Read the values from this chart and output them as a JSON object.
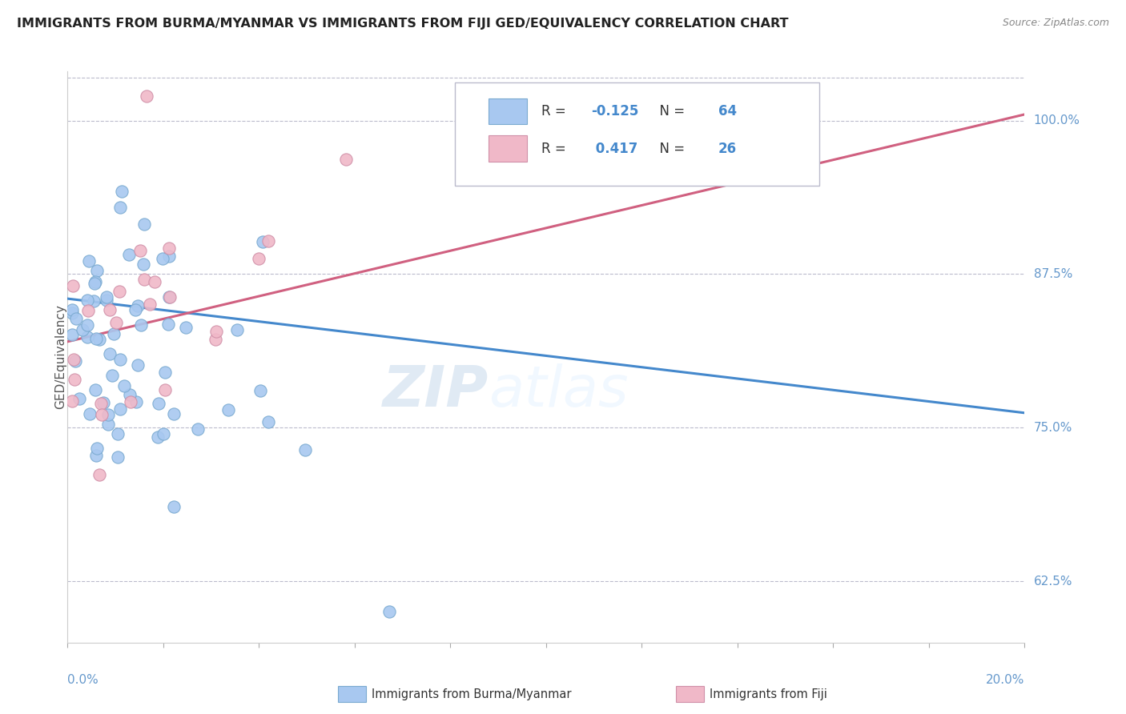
{
  "title": "IMMIGRANTS FROM BURMA/MYANMAR VS IMMIGRANTS FROM FIJI GED/EQUIVALENCY CORRELATION CHART",
  "source": "Source: ZipAtlas.com",
  "ylabel": "GED/Equivalency",
  "xlim": [
    0.0,
    0.2
  ],
  "ylim": [
    0.575,
    1.04
  ],
  "yticks": [
    0.625,
    0.75,
    0.875,
    1.0
  ],
  "ytick_labels": [
    "62.5%",
    "75.0%",
    "87.5%",
    "100.0%"
  ],
  "watermark_zip": "ZIP",
  "watermark_atlas": "atlas",
  "series": [
    {
      "label": "Immigrants from Burma/Myanmar",
      "color": "#a8c8f0",
      "edge_color": "#7aaad0",
      "R": -0.125,
      "N": 64,
      "trend_color": "#4488cc",
      "trend_y0": 0.855,
      "trend_y1": 0.762
    },
    {
      "label": "Immigrants from Fiji",
      "color": "#f0b8c8",
      "edge_color": "#d090a8",
      "R": 0.417,
      "N": 26,
      "trend_color": "#d06080",
      "trend_y0": 0.82,
      "trend_y1": 1.005
    }
  ],
  "legend_R_color": "#4488cc",
  "legend_N_color": "#4488cc",
  "axis_color": "#6699cc",
  "background_color": "#ffffff",
  "grid_color": "#bbbbcc"
}
